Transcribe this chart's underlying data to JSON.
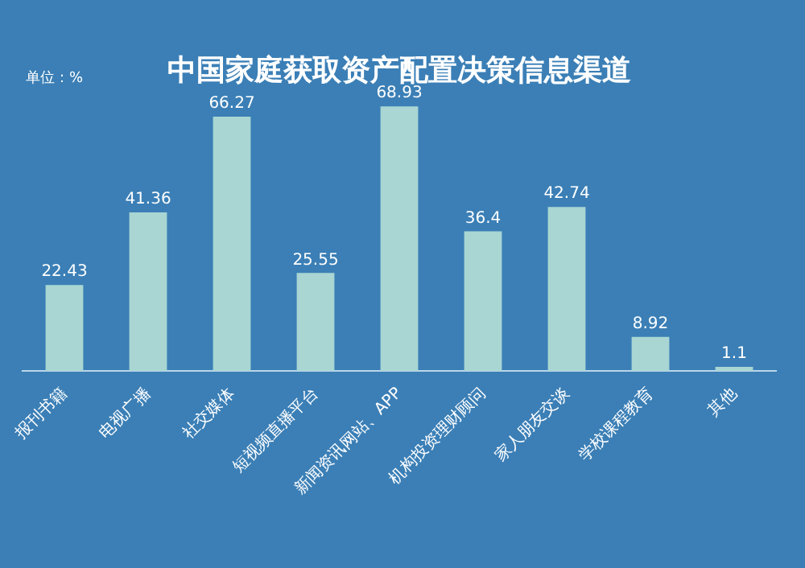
{
  "chart_data": {
    "type": "bar",
    "title": "中国家庭获取资产配置决策信息渠道",
    "annotations": [
      "单位：%"
    ],
    "categories": [
      "报刊书籍",
      "电视广播",
      "社交媒体",
      "短视频直播平台",
      "新闻资讯网站、APP",
      "机构投资理财顾问",
      "家人朋友交谈",
      "学校课程教育",
      "其他"
    ],
    "values": [
      22.43,
      41.36,
      66.27,
      25.55,
      68.93,
      36.4,
      42.74,
      8.92,
      1.1
    ],
    "color": "#a9d6d3",
    "data_labels": true,
    "grid": false,
    "legend": false
  }
}
